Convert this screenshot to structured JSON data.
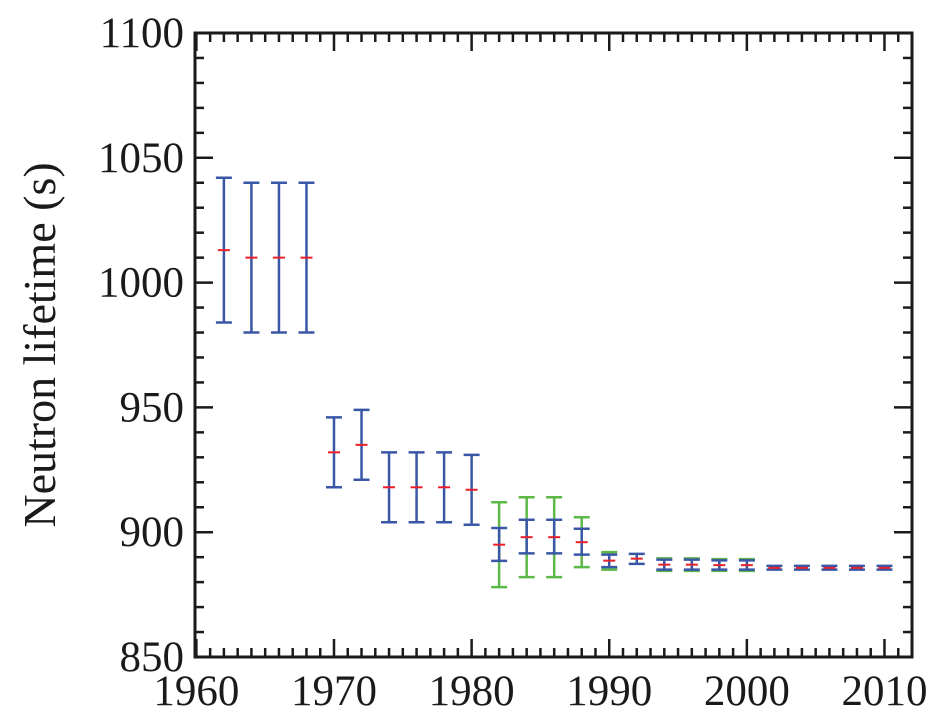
{
  "chart_data": {
    "type": "scatter",
    "title": "",
    "xlabel": "",
    "ylabel": "Neutron lifetime (s)",
    "xlim": [
      1959.9,
      2012
    ],
    "ylim": [
      850,
      1100
    ],
    "xticks": [
      1960,
      1970,
      1980,
      1990,
      2000,
      2010
    ],
    "yticks": [
      850,
      900,
      950,
      1000,
      1050,
      1100
    ],
    "x_minor_step": 1,
    "y_minor_step": 10,
    "grid": false,
    "legend": null,
    "colors": {
      "central_value": "#e8202a",
      "error_bar_primary": "#3a57a7",
      "error_bar_secondary": "#5cb847",
      "axis": "#1a1a1a"
    },
    "series": [
      {
        "name": "central value",
        "marker": "red horizontal dash",
        "points": [
          {
            "x": 1962,
            "y": 1013,
            "err_lo": 984,
            "err_hi": 1042
          },
          {
            "x": 1964,
            "y": 1010,
            "err_lo": 980,
            "err_hi": 1040
          },
          {
            "x": 1966,
            "y": 1010,
            "err_lo": 980,
            "err_hi": 1040
          },
          {
            "x": 1968,
            "y": 1010,
            "err_lo": 980,
            "err_hi": 1040
          },
          {
            "x": 1970,
            "y": 932,
            "err_lo": 918,
            "err_hi": 946
          },
          {
            "x": 1972,
            "y": 935,
            "err_lo": 921,
            "err_hi": 949
          },
          {
            "x": 1974,
            "y": 918,
            "err_lo": 904,
            "err_hi": 932
          },
          {
            "x": 1976,
            "y": 918,
            "err_lo": 904,
            "err_hi": 932
          },
          {
            "x": 1978,
            "y": 918,
            "err_lo": 904,
            "err_hi": 932
          },
          {
            "x": 1980,
            "y": 917,
            "err_lo": 903,
            "err_hi": 931
          },
          {
            "x": 1982,
            "y": 895,
            "err_lo": 888.5,
            "err_hi": 901.7,
            "sys_lo": 878,
            "sys_hi": 912
          },
          {
            "x": 1984,
            "y": 898,
            "err_lo": 891.5,
            "err_hi": 905,
            "sys_lo": 882,
            "sys_hi": 914
          },
          {
            "x": 1986,
            "y": 898,
            "err_lo": 891.5,
            "err_hi": 905,
            "sys_lo": 882,
            "sys_hi": 914
          },
          {
            "x": 1988,
            "y": 896,
            "err_lo": 891,
            "err_hi": 901.4,
            "sys_lo": 886,
            "sys_hi": 906
          },
          {
            "x": 1990,
            "y": 888.6,
            "err_lo": 886,
            "err_hi": 891,
            "sys_lo": 885,
            "sys_hi": 892
          },
          {
            "x": 1992,
            "y": 889.4,
            "err_lo": 887.3,
            "err_hi": 891.3
          },
          {
            "x": 1994,
            "y": 887,
            "err_lo": 885,
            "err_hi": 889,
            "sys_lo": 884.5,
            "sys_hi": 889.5
          },
          {
            "x": 1996,
            "y": 887,
            "err_lo": 885,
            "err_hi": 889,
            "sys_lo": 884.5,
            "sys_hi": 889.5
          },
          {
            "x": 1998,
            "y": 886.8,
            "err_lo": 885,
            "err_hi": 888.7,
            "sys_lo": 884.5,
            "sys_hi": 889.2
          },
          {
            "x": 2000,
            "y": 886.8,
            "err_lo": 885,
            "err_hi": 888.7,
            "sys_lo": 884.5,
            "sys_hi": 889.2
          },
          {
            "x": 2002,
            "y": 885.7,
            "err_lo": 885,
            "err_hi": 886.5
          },
          {
            "x": 2004,
            "y": 885.7,
            "err_lo": 885,
            "err_hi": 886.5
          },
          {
            "x": 2006,
            "y": 885.7,
            "err_lo": 885,
            "err_hi": 886.5
          },
          {
            "x": 2008,
            "y": 885.7,
            "err_lo": 885,
            "err_hi": 886.5
          },
          {
            "x": 2010,
            "y": 885.7,
            "err_lo": 885,
            "err_hi": 886.5
          }
        ]
      }
    ]
  }
}
